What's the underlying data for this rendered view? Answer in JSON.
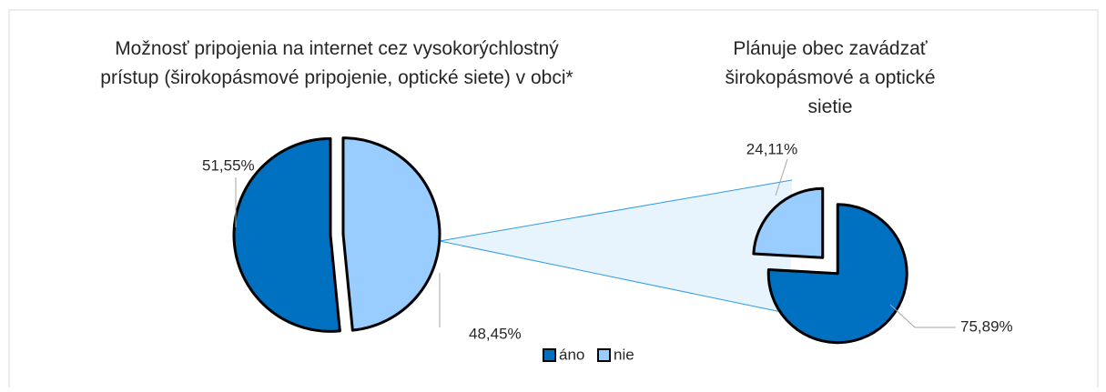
{
  "chart_data": [
    {
      "type": "pie",
      "title": [
        "Možnosť pripojenia na internet cez vysokorýchlostný",
        "prístup (širokopásmové pripojenie, optické siete) v obci*"
      ],
      "categories": [
        "áno",
        "nie"
      ],
      "values": [
        51.55,
        48.45
      ],
      "value_labels": [
        "51,55%",
        "48,45%"
      ],
      "colors": [
        "#0070c0",
        "#99ccff"
      ]
    },
    {
      "type": "pie",
      "title": [
        "Plánuje obec zavádzať",
        "širokopásmové a optické",
        "sietie"
      ],
      "categories": [
        "áno",
        "nie"
      ],
      "values": [
        75.89,
        24.11
      ],
      "value_labels": [
        "75,89%",
        "24,11%"
      ],
      "colors": [
        "#0070c0",
        "#99ccff"
      ]
    }
  ]
}
